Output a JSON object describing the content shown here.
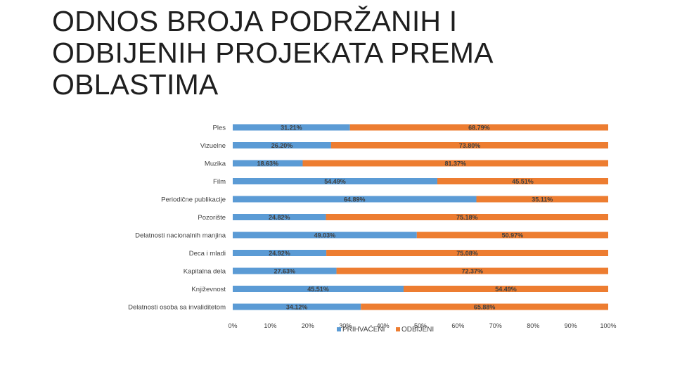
{
  "title": "ODNOS BROJA PODRŽANIH I ODBIJENIH PROJEKATA PREMA OBLASTIMA",
  "chart_data": {
    "type": "bar",
    "orientation": "horizontal",
    "stacked": "100%",
    "categories": [
      "Ples",
      "Vizuelne",
      "Muzika",
      "Film",
      "Periodične publikacije",
      "Pozorište",
      "Delatnosti nacionalnih manjina",
      "Deca i mladi",
      "Kapitalna dela",
      "Književnost",
      "Delatnosti osoba sa invaliditetom"
    ],
    "series": [
      {
        "name": "PRIHVAĆENI",
        "color": "#5b9bd5",
        "values": [
          31.21,
          26.2,
          18.63,
          54.49,
          64.89,
          24.82,
          49.03,
          24.92,
          27.63,
          45.51,
          34.12
        ],
        "labels": [
          "31.21%",
          "26.20%",
          "18.63%",
          "54.49%",
          "64.89%",
          "24.82%",
          "49.03%",
          "24.92%",
          "27.63%",
          "45.51%",
          "34.12%"
        ]
      },
      {
        "name": "ODBIJENI",
        "color": "#ed7d31",
        "values": [
          68.79,
          73.8,
          81.37,
          45.51,
          35.11,
          75.18,
          50.97,
          75.08,
          72.37,
          54.49,
          65.88
        ],
        "labels": [
          "68.79%",
          "73.80%",
          "81.37%",
          "45.51%",
          "35.11%",
          "75.18%",
          "50.97%",
          "75.08%",
          "72.37%",
          "54.49%",
          "65.88%"
        ]
      }
    ],
    "xlim": [
      0,
      100
    ],
    "x_ticks": [
      "0%",
      "10%",
      "20%",
      "30%",
      "40%",
      "50%",
      "60%",
      "70%",
      "80%",
      "90%",
      "100%"
    ],
    "grid": false,
    "legend_position": "bottom"
  }
}
